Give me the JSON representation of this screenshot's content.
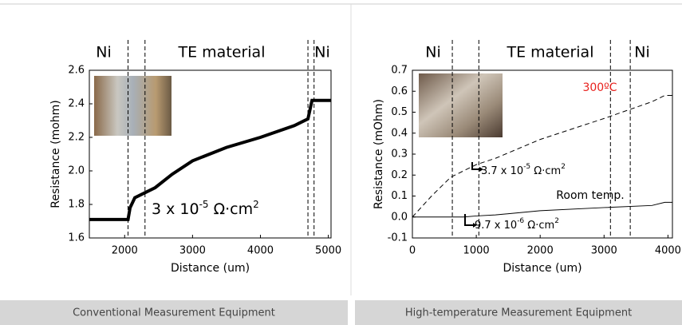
{
  "chart_data": [
    {
      "type": "line",
      "xlabel": "Distance (um)",
      "ylabel": "Resistance (mohm)",
      "regions": [
        "Ni",
        "TE material",
        "Ni"
      ],
      "annotations": [
        [
          "3 x 10",
          "-5",
          " Ω·cm",
          "2"
        ]
      ],
      "xlim": [
        1480,
        5040
      ],
      "xticks": [
        2000,
        3000,
        4000,
        5000
      ],
      "ylim": [
        1.6,
        2.6
      ],
      "yticks": [
        1.6,
        1.8,
        {
          "value": 2,
          "label": "2.0"
        },
        2.2,
        2.4,
        2.6
      ],
      "vlines": [
        2050,
        2300,
        4700,
        4790
      ],
      "x": [
        1480,
        2050,
        2080,
        2150,
        2300,
        2450,
        2700,
        3000,
        3500,
        4000,
        4500,
        4700,
        4760,
        4800,
        5040
      ],
      "series": [
        {
          "color": "#000000",
          "width": 4,
          "dash": false,
          "values": [
            1.71,
            1.71,
            1.78,
            1.84,
            1.87,
            1.9,
            1.98,
            2.06,
            2.14,
            2.2,
            2.27,
            2.31,
            2.42,
            2.42,
            2.42
          ]
        }
      ]
    },
    {
      "type": "line",
      "xlabel": "Distance (um)",
      "ylabel": "Resistance (mOhm)",
      "regions": [
        "Ni",
        "TE material",
        "Ni"
      ],
      "annotations": [
        [
          "3.7 x 10",
          "-5",
          " Ω·cm",
          "2"
        ],
        [
          "9.7 x 10",
          "-6",
          " Ω·cm",
          "2"
        ]
      ],
      "xlim": [
        0,
        4070
      ],
      "xticks": [
        0,
        1000,
        2000,
        3000,
        4000
      ],
      "ylim": [
        -0.1,
        0.7
      ],
      "yticks": [
        -0.1,
        {
          "value": 0,
          "label": "0.0"
        },
        0.1,
        0.2,
        0.3,
        0.4,
        0.5,
        0.6,
        0.7
      ],
      "vlines": [
        625,
        1040,
        3100,
        3410
      ],
      "x": [
        0,
        300,
        600,
        800,
        1000,
        1300,
        2000,
        3000,
        3750,
        3950,
        4070
      ],
      "series": [
        {
          "name": "300ºC",
          "color": "#000000",
          "label_color": "#e8211d",
          "width": 1,
          "dash": true,
          "values": [
            0,
            0.1,
            0.19,
            0.22,
            0.25,
            0.28,
            0.37,
            0.47,
            0.55,
            0.58,
            0.58
          ]
        },
        {
          "name": "Room temp.",
          "color": "#000000",
          "label_color": "#000000",
          "width": 1,
          "dash": false,
          "values": [
            0,
            0,
            0,
            0,
            0.005,
            0.01,
            0.03,
            0.045,
            0.055,
            0.07,
            0.07
          ]
        }
      ]
    }
  ],
  "captions": [
    "Conventional Measurement Equipment",
    "High-temperature Measurement Equipment"
  ]
}
